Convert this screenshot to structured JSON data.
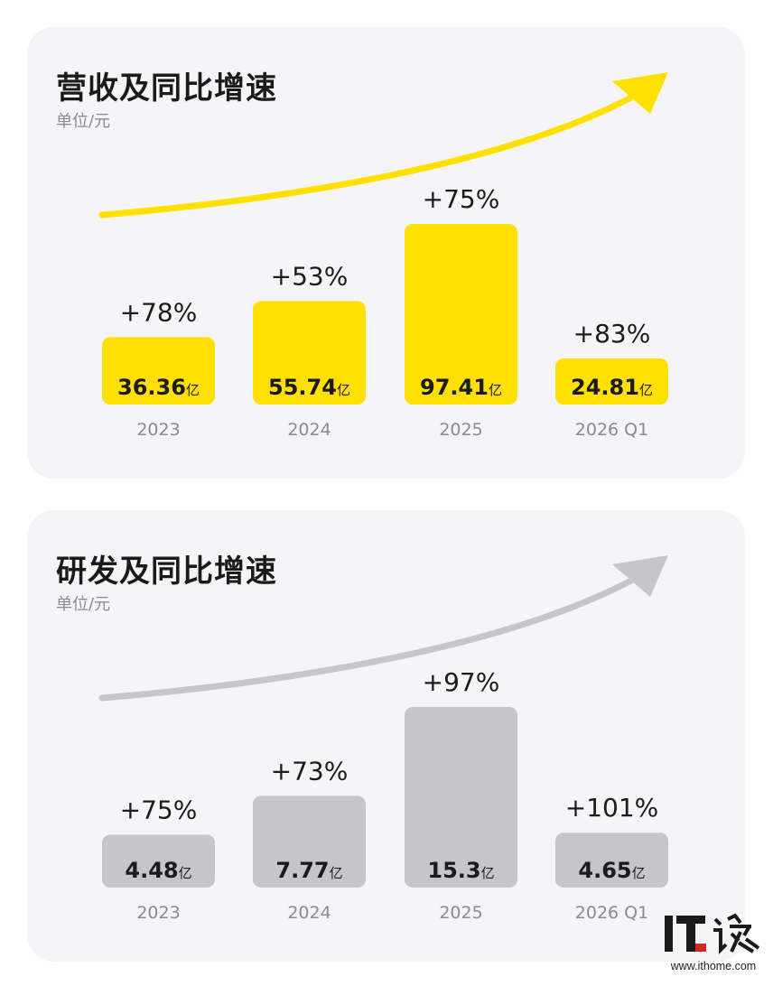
{
  "chart_data": [
    {
      "type": "bar",
      "title": "营收及同比增速",
      "subtitle": "单位/元",
      "categories": [
        "2023",
        "2024",
        "2025",
        "2026 Q1"
      ],
      "values": [
        36.36,
        55.74,
        97.41,
        24.81
      ],
      "value_labels": [
        "36.36",
        "55.74",
        "97.41",
        "24.81"
      ],
      "value_unit": "亿",
      "growth_labels": [
        "+78%",
        "+53%",
        "+75%",
        "+83%"
      ],
      "color": "#ffe000",
      "arrow_color": "#ffe000",
      "grid": false,
      "legend": "none"
    },
    {
      "type": "bar",
      "title": "研发及同比增速",
      "subtitle": "单位/元",
      "categories": [
        "2023",
        "2024",
        "2025",
        "2026 Q1"
      ],
      "values": [
        4.48,
        7.77,
        15.3,
        4.65
      ],
      "value_labels": [
        "4.48",
        "7.77",
        "15.3",
        "4.65"
      ],
      "value_unit": "亿",
      "growth_labels": [
        "+75%",
        "+73%",
        "+97%",
        "+101%"
      ],
      "color": "#c6c6ca",
      "arrow_color": "#c6c6ca",
      "grid": false,
      "legend": "none"
    }
  ],
  "watermark": {
    "logo_text": "IT之家",
    "url": "www.ithome.com"
  }
}
